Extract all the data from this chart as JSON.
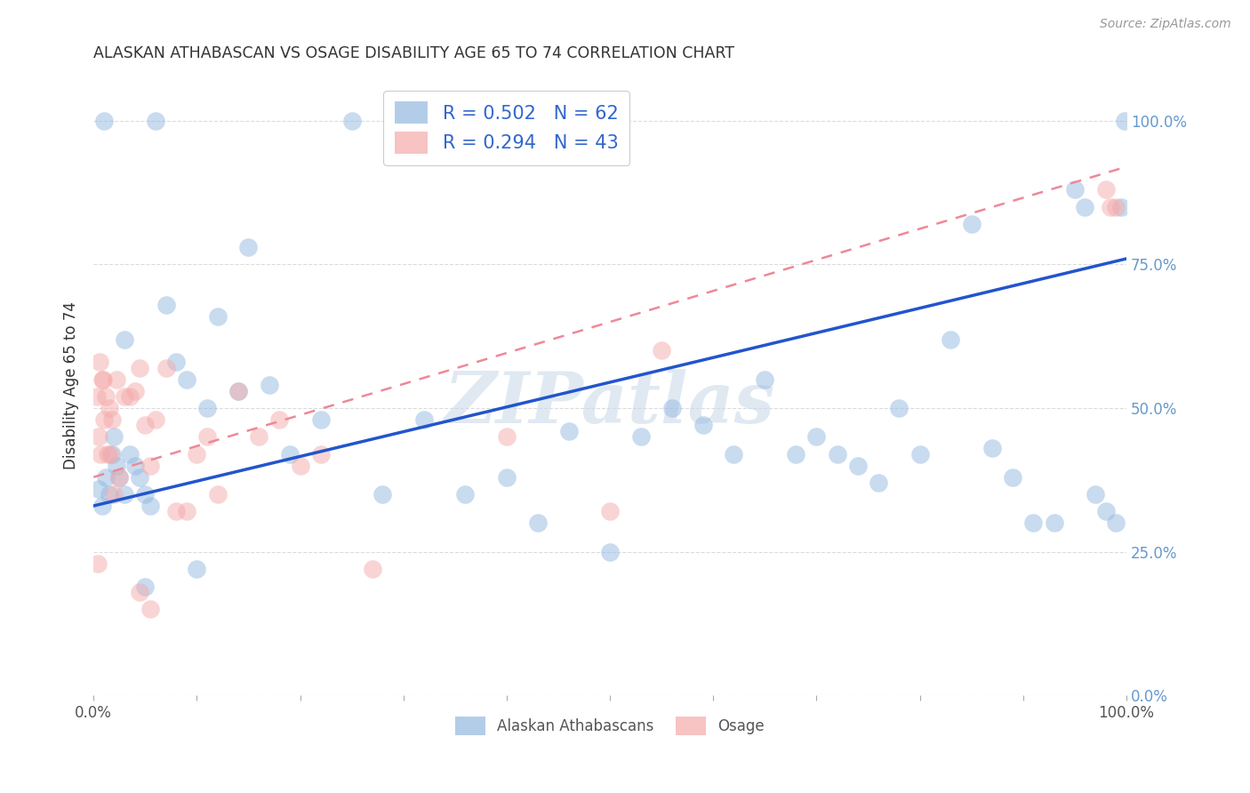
{
  "title": "ALASKAN ATHABASCAN VS OSAGE DISABILITY AGE 65 TO 74 CORRELATION CHART",
  "source": "Source: ZipAtlas.com",
  "ylabel": "Disability Age 65 to 74",
  "legend_blue_r": "R = 0.502",
  "legend_blue_n": "N = 62",
  "legend_pink_r": "R = 0.294",
  "legend_pink_n": "N = 43",
  "legend_blue_label": "Alaskan Athabascans",
  "legend_pink_label": "Osage",
  "blue_scatter_x": [
    0.5,
    0.8,
    1.0,
    1.2,
    1.5,
    1.8,
    2.0,
    2.2,
    2.5,
    3.0,
    3.5,
    4.0,
    4.5,
    5.0,
    5.5,
    6.0,
    7.0,
    8.0,
    9.0,
    10.0,
    11.0,
    12.0,
    14.0,
    15.0,
    17.0,
    19.0,
    22.0,
    25.0,
    28.0,
    32.0,
    36.0,
    40.0,
    43.0,
    46.0,
    50.0,
    53.0,
    56.0,
    59.0,
    62.0,
    65.0,
    68.0,
    70.0,
    72.0,
    74.0,
    76.0,
    78.0,
    80.0,
    83.0,
    85.0,
    87.0,
    89.0,
    91.0,
    93.0,
    95.0,
    96.0,
    97.0,
    98.0,
    99.0,
    99.5,
    99.8,
    5.0,
    3.0
  ],
  "blue_scatter_y": [
    36.0,
    33.0,
    100.0,
    38.0,
    35.0,
    42.0,
    45.0,
    40.0,
    38.0,
    35.0,
    42.0,
    40.0,
    38.0,
    35.0,
    33.0,
    100.0,
    68.0,
    58.0,
    55.0,
    22.0,
    50.0,
    66.0,
    53.0,
    78.0,
    54.0,
    42.0,
    48.0,
    100.0,
    35.0,
    48.0,
    35.0,
    38.0,
    30.0,
    46.0,
    25.0,
    45.0,
    50.0,
    47.0,
    42.0,
    55.0,
    42.0,
    45.0,
    42.0,
    40.0,
    37.0,
    50.0,
    42.0,
    62.0,
    82.0,
    43.0,
    38.0,
    30.0,
    30.0,
    88.0,
    85.0,
    35.0,
    32.0,
    30.0,
    85.0,
    100.0,
    19.0,
    62.0
  ],
  "pink_scatter_x": [
    0.3,
    0.5,
    0.7,
    0.8,
    0.9,
    1.0,
    1.2,
    1.4,
    1.5,
    1.6,
    1.8,
    2.0,
    2.2,
    2.5,
    3.0,
    3.5,
    4.0,
    4.5,
    5.0,
    5.5,
    6.0,
    7.0,
    8.0,
    9.0,
    10.0,
    11.0,
    12.0,
    14.0,
    16.0,
    18.0,
    20.0,
    22.0,
    27.0,
    40.0,
    50.0,
    55.0,
    98.0,
    98.5,
    99.0,
    4.5,
    5.5,
    0.6,
    0.4
  ],
  "pink_scatter_y": [
    52.0,
    45.0,
    42.0,
    55.0,
    55.0,
    48.0,
    52.0,
    42.0,
    50.0,
    42.0,
    48.0,
    35.0,
    55.0,
    38.0,
    52.0,
    52.0,
    53.0,
    57.0,
    47.0,
    40.0,
    48.0,
    57.0,
    32.0,
    32.0,
    42.0,
    45.0,
    35.0,
    53.0,
    45.0,
    48.0,
    40.0,
    42.0,
    22.0,
    45.0,
    32.0,
    60.0,
    88.0,
    85.0,
    85.0,
    18.0,
    15.0,
    58.0,
    23.0
  ],
  "blue_line_x": [
    0,
    100
  ],
  "blue_line_y": [
    33,
    76
  ],
  "pink_line_x": [
    0,
    100
  ],
  "pink_line_y": [
    38,
    92
  ],
  "ytick_labels": [
    "0.0%",
    "25.0%",
    "50.0%",
    "75.0%",
    "100.0%"
  ],
  "ytick_values": [
    0,
    25,
    50,
    75,
    100
  ],
  "xtick_values": [
    0,
    10,
    20,
    30,
    40,
    50,
    60,
    70,
    80,
    90,
    100
  ],
  "xlim": [
    0,
    100
  ],
  "ylim": [
    0,
    108
  ],
  "background_color": "#ffffff",
  "blue_color": "#93B8E0",
  "pink_color": "#F5AAAA",
  "blue_line_color": "#2255CC",
  "pink_line_color": "#EE8899",
  "grid_color": "#cccccc",
  "title_color": "#333333",
  "right_label_color": "#6699CC",
  "watermark_color": "#C8D8E8"
}
